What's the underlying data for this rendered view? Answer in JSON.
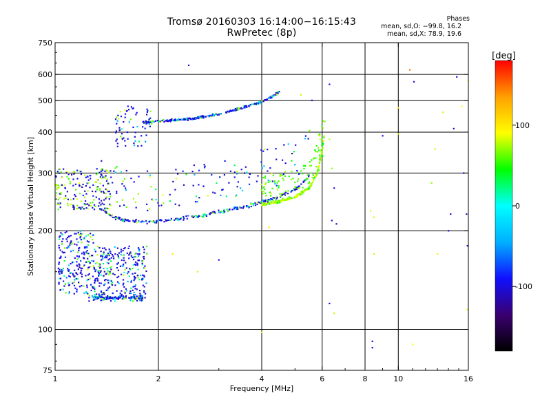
{
  "header": {
    "title": "Tromsø 20160303 16:14:00−16:15:43",
    "subtitle": "RwPretec (8p)",
    "phases_title": "Phases",
    "phases_line1": "mean, sd,O:  −99.8, 16.2",
    "phases_line2": "mean, sd,X:  78.9, 19.6"
  },
  "chart_data": {
    "type": "scatter",
    "title": "Tromsø 20160303 16:14:00−16:15:43",
    "subtitle": "RwPretec (8p)",
    "xlabel": "Frequency [MHz]",
    "ylabel": "Stationary phase Virtual Height [km]",
    "xscale": "log",
    "yscale": "log",
    "xlim": [
      1,
      16
    ],
    "ylim": [
      75,
      750
    ],
    "xticks": [
      1,
      2,
      4,
      6,
      8,
      10,
      16
    ],
    "yticks": [
      75,
      100,
      200,
      300,
      400,
      500,
      600,
      750
    ],
    "x_gridlines": [
      2,
      4,
      6,
      8,
      10
    ],
    "y_gridlines": [
      100,
      200,
      300,
      400,
      500,
      600
    ],
    "grid": true,
    "colorbar": {
      "label": "[deg]",
      "range": [
        -180,
        180
      ],
      "ticks": [
        100,
        0,
        -100
      ],
      "stops": [
        "#000000",
        "#3a0070",
        "#1010ff",
        "#00b0ff",
        "#00ffff",
        "#00ff00",
        "#ffff00",
        "#ffa000",
        "#ff0000"
      ]
    },
    "series": [
      {
        "x_start": 1.35,
        "x_end": 5.5,
        "trace": "o_lower",
        "phase": -100,
        "points": [
          [
            1.35,
            235
          ],
          [
            1.45,
            222
          ],
          [
            1.55,
            217
          ],
          [
            1.7,
            214
          ],
          [
            1.85,
            213
          ],
          [
            2.0,
            214
          ],
          [
            2.3,
            218
          ],
          [
            2.6,
            222
          ],
          [
            3.0,
            228
          ],
          [
            3.5,
            236
          ],
          [
            4.0,
            244
          ],
          [
            4.5,
            255
          ],
          [
            5.0,
            268
          ],
          [
            5.3,
            282
          ],
          [
            5.5,
            298
          ]
        ]
      },
      {
        "x_start": 4.0,
        "x_end": 6.1,
        "trace": "x_lower",
        "phase": 80,
        "points": [
          [
            4.0,
            240
          ],
          [
            4.5,
            246
          ],
          [
            5.0,
            254
          ],
          [
            5.5,
            270
          ],
          [
            5.8,
            300
          ],
          [
            6.0,
            350
          ],
          [
            6.1,
            400
          ]
        ]
      },
      {
        "x_start": 1.8,
        "x_end": 4.5,
        "trace": "o_upper",
        "phase": -100,
        "points": [
          [
            1.8,
            428
          ],
          [
            2.0,
            432
          ],
          [
            2.4,
            438
          ],
          [
            2.8,
            448
          ],
          [
            3.2,
            462
          ],
          [
            3.6,
            478
          ],
          [
            4.0,
            495
          ],
          [
            4.3,
            515
          ],
          [
            4.5,
            530
          ]
        ]
      },
      {
        "x_start": 1.0,
        "x_end": 2.0,
        "trace": "spread_low",
        "phase": -100,
        "points": [
          [
            1.05,
            135
          ],
          [
            1.1,
            150
          ],
          [
            1.2,
            165
          ],
          [
            1.3,
            140
          ],
          [
            1.4,
            128
          ],
          [
            1.5,
            124
          ],
          [
            1.6,
            125
          ],
          [
            1.7,
            126
          ],
          [
            1.9,
            136
          ]
        ]
      }
    ]
  }
}
